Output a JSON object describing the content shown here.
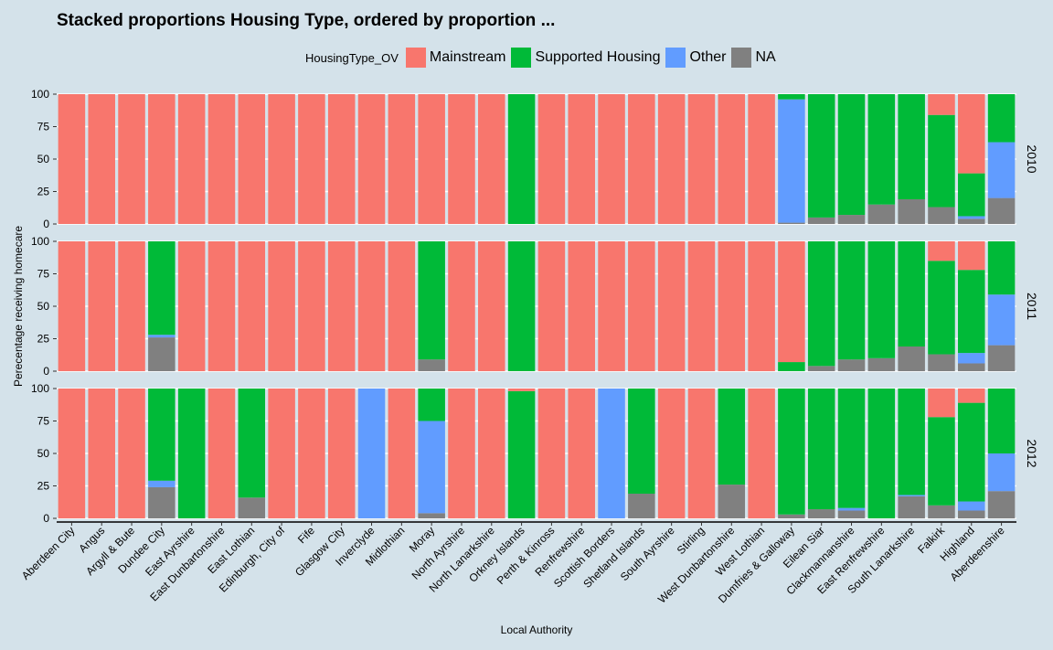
{
  "chart_data": {
    "type": "bar",
    "stacked": true,
    "title": "Stacked proportions Housing Type, ordered by proportion ...",
    "xlabel": "Local Authority",
    "ylabel": "Perecentage receiving homecare",
    "ylim": [
      0,
      100
    ],
    "yticks": [
      0,
      25,
      50,
      75,
      100
    ],
    "grid": true,
    "legend": {
      "title": "HousingType_OV",
      "position": "top",
      "entries": [
        {
          "name": "Mainstream",
          "color": "#f8766d"
        },
        {
          "name": "Supported Housing",
          "color": "#00ba38"
        },
        {
          "name": "Other",
          "color": "#619cff"
        },
        {
          "name": "NA",
          "color": "#808080"
        }
      ]
    },
    "stack_order_bottom_to_top": [
      "NA",
      "Other",
      "Supported Housing",
      "Mainstream"
    ],
    "categories": [
      "Aberdeen City",
      "Angus",
      "Argyll & Bute",
      "Dundee City",
      "East Ayrshire",
      "East Dunbartonshire",
      "East Lothian",
      "Edinburgh, City of",
      "Fife",
      "Glasgow City",
      "Inverclyde",
      "Midlothian",
      "Moray",
      "North Ayrshire",
      "North Lanarkshire",
      "Orkney Islands",
      "Perth & Kinross",
      "Renfrewshire",
      "Scottish Borders",
      "Shetland Islands",
      "South Ayrshire",
      "Stirling",
      "West Dunbartonshire",
      "West Lothian",
      "Dumfries & Galloway",
      "Eilean Siar",
      "Clackmannanshire",
      "East Renfrewshire",
      "South Lanarkshire",
      "Falkirk",
      "Highland",
      "Aberdeenshire"
    ],
    "panels": [
      {
        "label": "2010",
        "series": [
          {
            "name": "Mainstream",
            "values": [
              100,
              100,
              100,
              100,
              100,
              100,
              100,
              100,
              100,
              100,
              100,
              100,
              100,
              100,
              100,
              0,
              100,
              100,
              100,
              100,
              100,
              100,
              100,
              100,
              0,
              0,
              0,
              0,
              0,
              16,
              61,
              0
            ]
          },
          {
            "name": "Supported Housing",
            "values": [
              0,
              0,
              0,
              0,
              0,
              0,
              0,
              0,
              0,
              0,
              0,
              0,
              0,
              0,
              0,
              100,
              0,
              0,
              0,
              0,
              0,
              0,
              0,
              0,
              4,
              95,
              93,
              85,
              81,
              71,
              33,
              37
            ]
          },
          {
            "name": "Other",
            "values": [
              0,
              0,
              0,
              0,
              0,
              0,
              0,
              0,
              0,
              0,
              0,
              0,
              0,
              0,
              0,
              0,
              0,
              0,
              0,
              0,
              0,
              0,
              0,
              0,
              95,
              0,
              0,
              0,
              0,
              0,
              2,
              43
            ]
          },
          {
            "name": "NA",
            "values": [
              0,
              0,
              0,
              0,
              0,
              0,
              0,
              0,
              0,
              0,
              0,
              0,
              0,
              0,
              0,
              0,
              0,
              0,
              0,
              0,
              0,
              0,
              0,
              0,
              1,
              5,
              7,
              15,
              19,
              13,
              4,
              20
            ]
          }
        ]
      },
      {
        "label": "2011",
        "series": [
          {
            "name": "Mainstream",
            "values": [
              100,
              100,
              100,
              0,
              100,
              100,
              100,
              100,
              100,
              100,
              100,
              100,
              0,
              100,
              100,
              0,
              100,
              100,
              100,
              100,
              100,
              100,
              100,
              100,
              93,
              0,
              0,
              0,
              0,
              15,
              22,
              0
            ]
          },
          {
            "name": "Supported Housing",
            "values": [
              0,
              0,
              0,
              72,
              0,
              0,
              0,
              0,
              0,
              0,
              0,
              0,
              91,
              0,
              0,
              100,
              0,
              0,
              0,
              0,
              0,
              0,
              0,
              0,
              7,
              96,
              91,
              90,
              81,
              72,
              64,
              41
            ]
          },
          {
            "name": "Other",
            "values": [
              0,
              0,
              0,
              2,
              0,
              0,
              0,
              0,
              0,
              0,
              0,
              0,
              0,
              0,
              0,
              0,
              0,
              0,
              0,
              0,
              0,
              0,
              0,
              0,
              0,
              0,
              0,
              0,
              0,
              0,
              8,
              39
            ]
          },
          {
            "name": "NA",
            "values": [
              0,
              0,
              0,
              26,
              0,
              0,
              0,
              0,
              0,
              0,
              0,
              0,
              9,
              0,
              0,
              0,
              0,
              0,
              0,
              0,
              0,
              0,
              0,
              0,
              0,
              4,
              9,
              10,
              19,
              13,
              6,
              20
            ]
          }
        ]
      },
      {
        "label": "2012",
        "series": [
          {
            "name": "Mainstream",
            "values": [
              100,
              100,
              100,
              0,
              0,
              100,
              0,
              100,
              100,
              100,
              0,
              100,
              0,
              100,
              100,
              2,
              100,
              100,
              0,
              0,
              100,
              100,
              0,
              100,
              0,
              0,
              0,
              0,
              0,
              22,
              11,
              0
            ]
          },
          {
            "name": "Supported Housing",
            "values": [
              0,
              0,
              0,
              71,
              100,
              0,
              84,
              0,
              0,
              0,
              0,
              0,
              25,
              0,
              0,
              98,
              0,
              0,
              0,
              81,
              0,
              0,
              74,
              0,
              97,
              93,
              92,
              100,
              82,
              68,
              76,
              50
            ]
          },
          {
            "name": "Other",
            "values": [
              0,
              0,
              0,
              5,
              0,
              0,
              0,
              0,
              0,
              0,
              100,
              0,
              71,
              0,
              0,
              0,
              0,
              0,
              100,
              0,
              0,
              0,
              0,
              0,
              0,
              0,
              2,
              0,
              1,
              0,
              7,
              29
            ]
          },
          {
            "name": "NA",
            "values": [
              0,
              0,
              0,
              24,
              0,
              0,
              16,
              0,
              0,
              0,
              0,
              0,
              4,
              0,
              0,
              0,
              0,
              0,
              0,
              19,
              0,
              0,
              26,
              0,
              3,
              7,
              6,
              0,
              17,
              10,
              6,
              21
            ]
          }
        ]
      }
    ]
  }
}
